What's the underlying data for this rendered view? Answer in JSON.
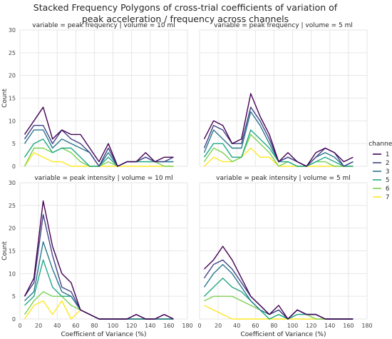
{
  "figure": {
    "title_line1": "Stacked Frequency Polygons of cross-trial coefficients of variation of",
    "title_line2": "peak acceleration / frequency  across channels"
  },
  "chart_data": {
    "type": "line",
    "xlabel": "Coefficient of Variance (%)",
    "ylabel": "Count",
    "xlim": [
      0,
      180
    ],
    "ylim": [
      0,
      30
    ],
    "xticks": [
      0,
      20,
      40,
      60,
      80,
      100,
      120,
      140,
      160,
      180
    ],
    "yticks": [
      0,
      5,
      10,
      15,
      20,
      25,
      30
    ],
    "grid": true,
    "legend": {
      "title": "channel",
      "position": "right",
      "entries": [
        "1",
        "2",
        "3",
        "5",
        "6",
        "7"
      ]
    },
    "colors": {
      "1": "#440154",
      "2": "#414487",
      "3": "#2a788e",
      "5": "#22a884",
      "6": "#7ad151",
      "7": "#fde725"
    },
    "x": [
      5,
      15,
      25,
      35,
      45,
      55,
      65,
      75,
      85,
      95,
      105,
      115,
      125,
      135,
      145,
      155,
      165
    ],
    "panels": [
      {
        "title": "variable = peak frequency | volume = 10 ml",
        "series": [
          {
            "name": "1",
            "values": [
              7,
              10,
              13,
              6,
              8,
              7,
              7,
              4,
              1,
              5,
              0,
              1,
              1,
              3,
              1,
              2,
              2
            ]
          },
          {
            "name": "2",
            "values": [
              6,
              9,
              9,
              5,
              8,
              6,
              5,
              3,
              0,
              4,
              0,
              1,
              1,
              2,
              1,
              1,
              2
            ]
          },
          {
            "name": "3",
            "values": [
              5,
              8,
              8,
              4,
              6,
              5,
              4,
              3,
              0,
              3,
              0,
              1,
              1,
              2,
              1,
              1,
              1
            ]
          },
          {
            "name": "5",
            "values": [
              2,
              5,
              6,
              3,
              4,
              4,
              2,
              0,
              0,
              2,
              0,
              1,
              1,
              1,
              1,
              1,
              1
            ]
          },
          {
            "name": "6",
            "values": [
              0,
              4,
              4,
              3,
              4,
              3,
              1,
              0,
              0,
              1,
              0,
              1,
              1,
              1,
              1,
              0,
              0
            ]
          },
          {
            "name": "7",
            "values": [
              0,
              3,
              2,
              1,
              1,
              0,
              0,
              0,
              0,
              0,
              0,
              0,
              0,
              0,
              0,
              0,
              0
            ]
          }
        ]
      },
      {
        "title": "variable = peak frequency | volume = 5 ml",
        "series": [
          {
            "name": "1",
            "values": [
              6,
              10,
              9,
              5,
              6,
              16,
              11,
              7,
              1,
              3,
              1,
              0,
              3,
              4,
              3,
              1,
              2
            ]
          },
          {
            "name": "2",
            "values": [
              4,
              9,
              8,
              5,
              5,
              13,
              10,
              6,
              1,
              2,
              1,
              0,
              2,
              4,
              3,
              0,
              1
            ]
          },
          {
            "name": "3",
            "values": [
              3,
              8,
              6,
              4,
              4,
              12,
              9,
              5,
              1,
              2,
              1,
              0,
              2,
              3,
              2,
              0,
              1
            ]
          },
          {
            "name": "5",
            "values": [
              2,
              5,
              5,
              2,
              2,
              8,
              6,
              4,
              1,
              1,
              0,
              0,
              1,
              2,
              1,
              0,
              0
            ]
          },
          {
            "name": "6",
            "values": [
              1,
              4,
              3,
              1,
              2,
              7,
              5,
              3,
              0,
              1,
              0,
              0,
              1,
              1,
              0,
              0,
              0
            ]
          },
          {
            "name": "7",
            "values": [
              0,
              2,
              1,
              1,
              2,
              4,
              2,
              2,
              0,
              0,
              0,
              0,
              0,
              0,
              0,
              0,
              0
            ]
          }
        ]
      },
      {
        "title": "variable = peak intensity | volume = 10 ml",
        "series": [
          {
            "name": "1",
            "values": [
              5,
              9,
              26,
              16,
              10,
              8,
              2,
              1,
              0,
              0,
              0,
              0,
              1,
              0,
              0,
              1,
              0
            ]
          },
          {
            "name": "2",
            "values": [
              5,
              8,
              23,
              14,
              7,
              6,
              2,
              1,
              0,
              0,
              0,
              0,
              1,
              0,
              0,
              1,
              0
            ]
          },
          {
            "name": "3",
            "values": [
              4,
              6,
              17,
              11,
              6,
              5,
              2,
              1,
              0,
              0,
              0,
              0,
              0,
              0,
              0,
              0,
              0
            ]
          },
          {
            "name": "5",
            "values": [
              3,
              5,
              13,
              7,
              5,
              5,
              2,
              1,
              0,
              0,
              0,
              0,
              0,
              0,
              0,
              0,
              0
            ]
          },
          {
            "name": "6",
            "values": [
              1,
              4,
              6,
              5,
              5,
              3,
              2,
              1,
              0,
              0,
              0,
              0,
              0,
              0,
              0,
              0,
              0
            ]
          },
          {
            "name": "7",
            "values": [
              0,
              3,
              4,
              1,
              4,
              0,
              2,
              1,
              0,
              0,
              0,
              0,
              0,
              0,
              0,
              0,
              0
            ]
          }
        ]
      },
      {
        "title": "variable = peak intensity | volume = 5 ml",
        "series": [
          {
            "name": "1",
            "values": [
              11,
              13,
              16,
              13,
              9,
              5,
              3,
              1,
              3,
              0,
              2,
              1,
              1,
              0,
              0,
              0,
              0
            ]
          },
          {
            "name": "2",
            "values": [
              9,
              12,
              13,
              11,
              8,
              5,
              3,
              1,
              2,
              0,
              2,
              1,
              1,
              0,
              0,
              0,
              0
            ]
          },
          {
            "name": "3",
            "values": [
              7,
              10,
              12,
              10,
              7,
              4,
              2,
              1,
              2,
              0,
              2,
              1,
              1,
              0,
              0,
              0,
              0
            ]
          },
          {
            "name": "5",
            "values": [
              5,
              7,
              9,
              7,
              6,
              4,
              2,
              0,
              1,
              0,
              1,
              1,
              1,
              0,
              0,
              0,
              0
            ]
          },
          {
            "name": "6",
            "values": [
              4,
              5,
              5,
              5,
              4,
              3,
              2,
              0,
              1,
              0,
              1,
              1,
              0,
              0,
              0,
              0,
              0
            ]
          },
          {
            "name": "7",
            "values": [
              3,
              2,
              1,
              0,
              0,
              0,
              0,
              0,
              0,
              0,
              0,
              0,
              0,
              0,
              0,
              0,
              0
            ]
          }
        ]
      }
    ]
  }
}
